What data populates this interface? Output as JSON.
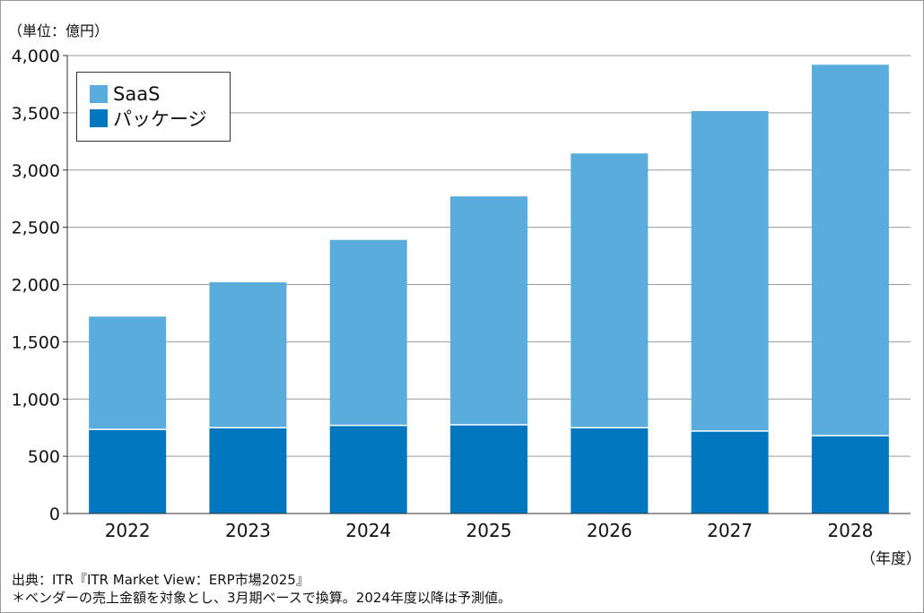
{
  "unit_label": "（単位：億円）",
  "x_unit_label": "（年度）",
  "source": "出典：ITR『ITR Market View：ERP市場2025』",
  "note": "＊ベンダーの売上金額を対象とし、3月期ベースで換算。2024年度以降は予測値。",
  "colors": {
    "saas": "#5aacdc",
    "package": "#0077bf",
    "grid": "#9a9a9a",
    "axis": "#333333"
  },
  "chart_data": {
    "type": "bar",
    "stacked": true,
    "categories": [
      "2022",
      "2023",
      "2024",
      "2025",
      "2026",
      "2027",
      "2028"
    ],
    "series": [
      {
        "name": "パッケージ",
        "values": [
          735,
          750,
          770,
          775,
          750,
          720,
          680
        ]
      },
      {
        "name": "SaaS",
        "values": [
          985,
          1270,
          1620,
          1995,
          2395,
          2795,
          3240
        ]
      }
    ],
    "ylim": [
      0,
      4000
    ],
    "yticks": [
      0,
      500,
      1000,
      1500,
      2000,
      2500,
      3000,
      3500,
      4000
    ],
    "ytick_labels": [
      "0",
      "500",
      "1,000",
      "1,500",
      "2,000",
      "2,500",
      "3,000",
      "3,500",
      "4,000"
    ],
    "grid": true,
    "legend": {
      "placement": "top-left",
      "entries": [
        "SaaS",
        "パッケージ"
      ]
    }
  }
}
